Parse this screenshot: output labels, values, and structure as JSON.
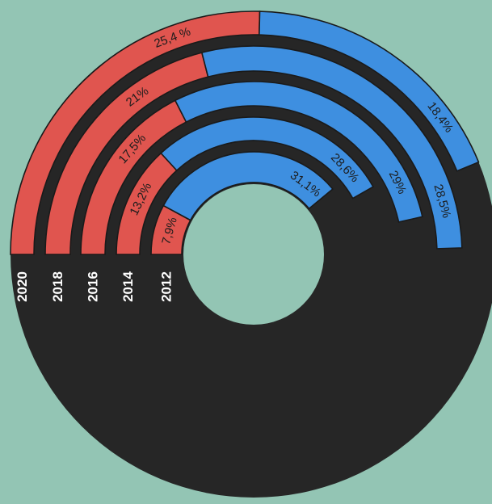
{
  "colors": {
    "background": "#93c5b4",
    "series_a": "#e0554f",
    "series_b": "#3e8fe0",
    "remainder": "#262626",
    "outline": "#1a1a1a"
  },
  "chart_data": {
    "type": "radial-bar",
    "description_units": "percent of full circle",
    "categories": [
      "2020",
      "2018",
      "2016",
      "2014",
      "2012"
    ],
    "series": [
      {
        "color": "red",
        "values": [
          25.4,
          21,
          17.5,
          13.2,
          7.9
        ],
        "labels": [
          "25,4 %",
          "21%",
          "17,5%",
          "13,2%",
          "7,9%"
        ]
      },
      {
        "color": "blue",
        "values": [
          18.4,
          28.5,
          29,
          28.6,
          31.1
        ],
        "labels": [
          "18,4%",
          "28,5%",
          "29%",
          "28,6%",
          "31,1%"
        ]
      }
    ],
    "remainder_color": "black",
    "start_angle": "bottom-left (270°)",
    "direction": "clockwise"
  }
}
